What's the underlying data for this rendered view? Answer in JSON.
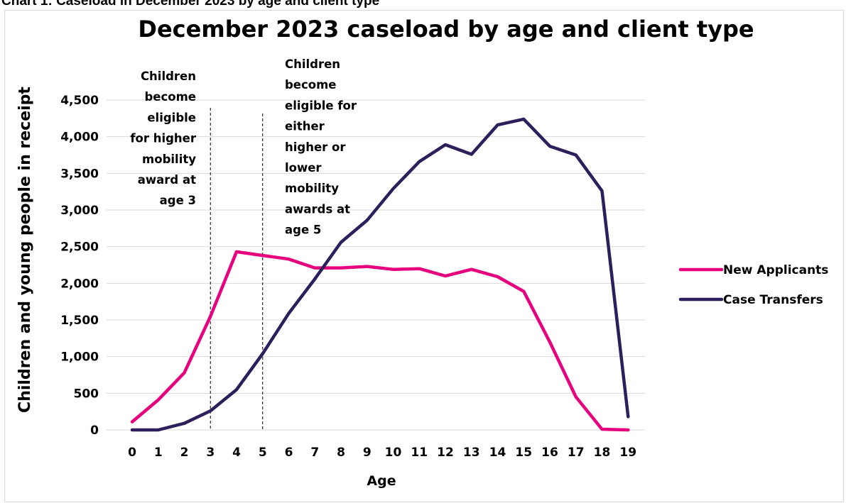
{
  "caption": "Chart 1: Caseload in December 2023 by age and client type",
  "chart_data": {
    "type": "line",
    "title": "December 2023 caseload by age and client type",
    "xlabel": "Age",
    "ylabel": "Children and young people in receipt",
    "x": [
      0,
      1,
      2,
      3,
      4,
      5,
      6,
      7,
      8,
      9,
      10,
      11,
      12,
      13,
      14,
      15,
      16,
      17,
      18,
      19
    ],
    "ylim": [
      0,
      4500
    ],
    "yticks": [
      0,
      500,
      1000,
      1500,
      2000,
      2500,
      3000,
      3500,
      4000,
      4500
    ],
    "ytick_labels": [
      "0",
      "500",
      "1,000",
      "1,500",
      "2,000",
      "2,500",
      "3,000",
      "3,500",
      "4,000",
      "4,500"
    ],
    "grid": true,
    "legend_position": "right",
    "series": [
      {
        "name": "New Applicants",
        "color": "#e6007e",
        "values": [
          110,
          410,
          780,
          1550,
          2430,
          2380,
          2330,
          2210,
          2210,
          2230,
          2190,
          2200,
          2100,
          2190,
          2090,
          1890,
          1200,
          450,
          10,
          0
        ]
      },
      {
        "name": "Case Transfers",
        "color": "#2d1e5c",
        "values": [
          0,
          0,
          90,
          260,
          550,
          1040,
          1590,
          2060,
          2560,
          2860,
          3290,
          3660,
          3890,
          3760,
          4160,
          4240,
          3870,
          3750,
          3260,
          180
        ]
      }
    ],
    "annotations": [
      {
        "at_x": 3,
        "lines": [
          "Children",
          "become",
          "eligible",
          "for higher",
          "mobility",
          "award at",
          "age 3"
        ]
      },
      {
        "at_x": 5,
        "lines": [
          "Children",
          "become",
          "eligible for",
          "either",
          "higher or",
          "lower",
          "mobility",
          "awards at",
          "age 5"
        ]
      }
    ]
  }
}
